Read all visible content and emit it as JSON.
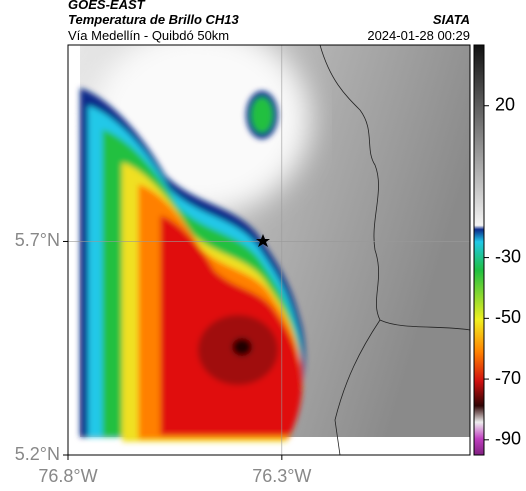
{
  "header": {
    "source": "GOES-EAST",
    "title": "Temperatura de Brillo CH13",
    "subtitle": "Vía Medellín - Quibdó 50km",
    "agency": "SIATA",
    "datetime": "2024-01-28 00:29"
  },
  "map": {
    "xlim": [
      -76.8,
      -75.86
    ],
    "ylim": [
      5.2,
      6.16
    ],
    "xticks": [
      {
        "value": -76.8,
        "label": "76.8°W"
      },
      {
        "value": -76.3,
        "label": "76.3°W"
      }
    ],
    "yticks": [
      {
        "value": 5.2,
        "label": "5.2°N"
      },
      {
        "value": 5.7,
        "label": "5.7°N"
      }
    ]
  },
  "colorbar": {
    "lim": [
      40,
      -95
    ],
    "ticks": [
      20,
      -30,
      -50,
      -70,
      -90
    ]
  }
}
